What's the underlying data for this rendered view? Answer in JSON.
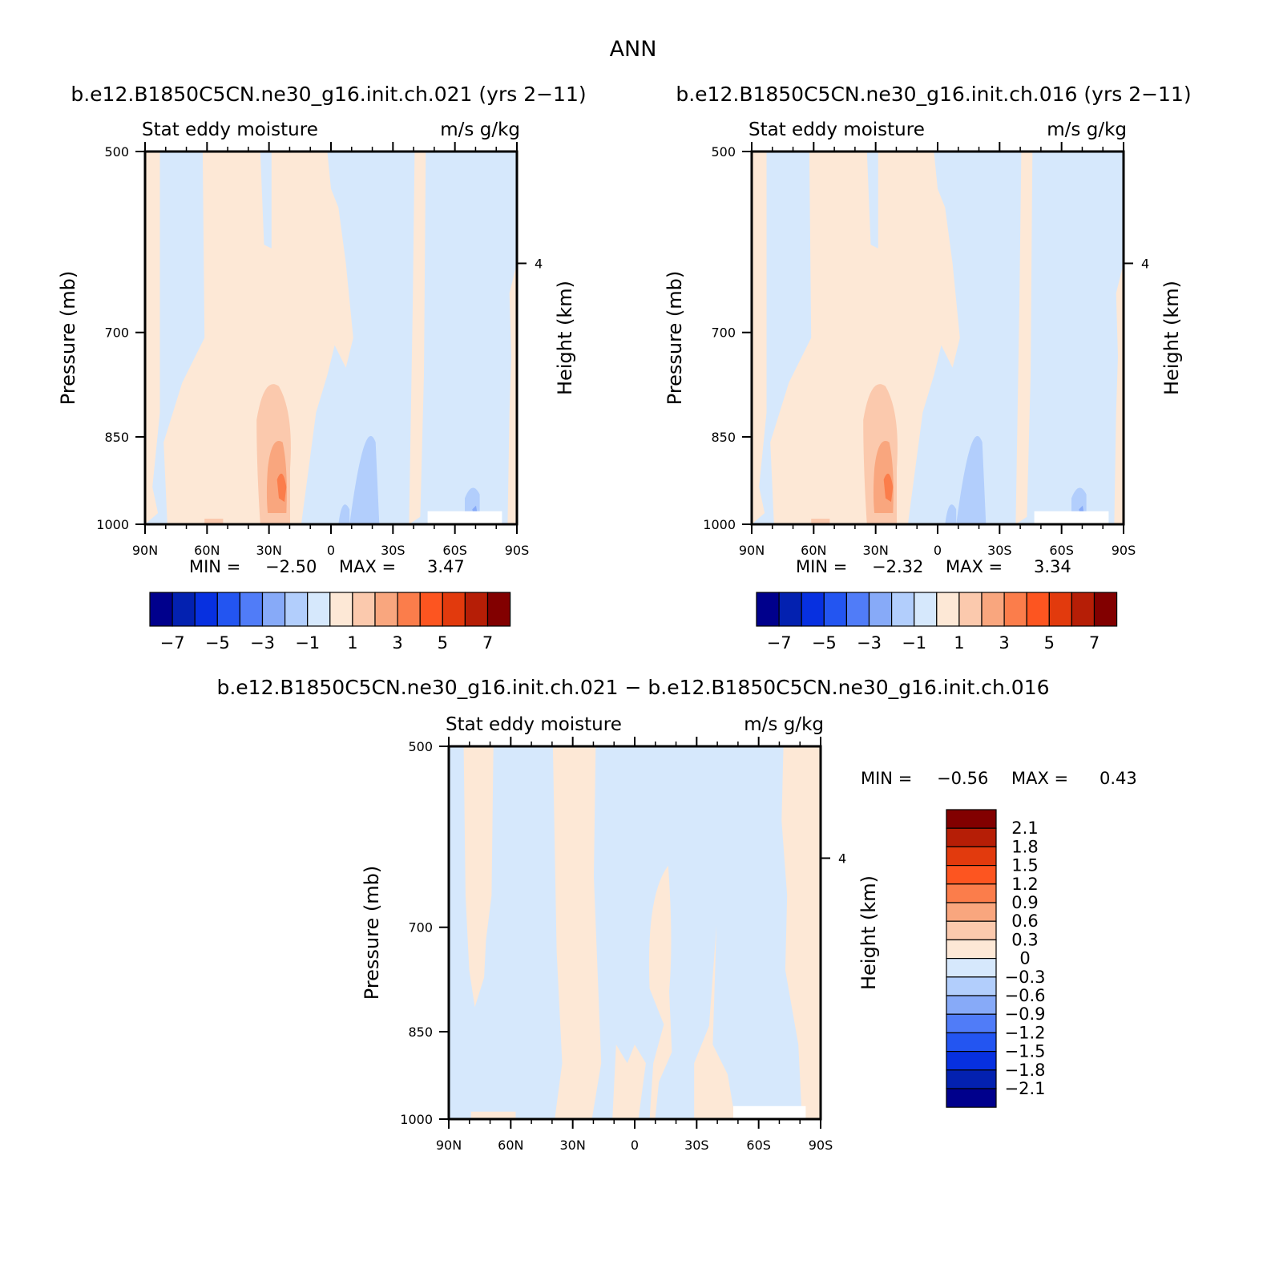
{
  "figure": {
    "title": "ANN",
    "diff_title": "b.e12.B1850C5CN.ne30_g16.init.ch.021 − b.e12.B1850C5CN.ne30_g16.init.ch.016"
  },
  "colors": {
    "pos": [
      "#fde8d6",
      "#fbc9ad",
      "#f9a67e",
      "#fb7d4b",
      "#fd5520",
      "#e23a0d",
      "#b61e06",
      "#820000"
    ],
    "neg": [
      "#d6e8fc",
      "#b2cefc",
      "#87aaf8",
      "#507cf8",
      "#2355f1",
      "#0730e0",
      "#0321b0",
      "#00008c"
    ]
  },
  "chart_data": [
    {
      "type": "contour",
      "case": "b.e12.B1850C5CN.ne30_g16.init.ch.021 (yrs 2−11)",
      "left_title": "Stat eddy moisture",
      "right_title": "m/s g/kg",
      "xlabel": "",
      "ylabel": "Pressure (mb)",
      "ylabel_right": "Height (km)",
      "x_ticks": [
        "90N",
        "60N",
        "30N",
        "0",
        "30S",
        "60S",
        "90S"
      ],
      "y_ticks": [
        "500",
        "700",
        "850",
        "1000"
      ],
      "y_right_ticks": [
        "4"
      ],
      "ylim": [
        1000,
        500
      ],
      "min_label": "MIN =",
      "min": "−2.50",
      "max_label": "MAX =",
      "max": "3.47",
      "colorbar_levels": [
        -7,
        -6,
        -5,
        -4,
        -3,
        -2,
        -1,
        0,
        1,
        2,
        3,
        4,
        5,
        6,
        7
      ],
      "colorbar_ticks": [
        "−7",
        "−5",
        "−3",
        "−1",
        "1",
        "3",
        "5",
        "7"
      ]
    },
    {
      "type": "contour",
      "case": "b.e12.B1850C5CN.ne30_g16.init.ch.016 (yrs 2−11)",
      "left_title": "Stat eddy moisture",
      "right_title": "m/s g/kg",
      "xlabel": "",
      "ylabel": "Pressure (mb)",
      "ylabel_right": "Height (km)",
      "x_ticks": [
        "90N",
        "60N",
        "30N",
        "0",
        "30S",
        "60S",
        "90S"
      ],
      "y_ticks": [
        "500",
        "700",
        "850",
        "1000"
      ],
      "y_right_ticks": [
        "4"
      ],
      "ylim": [
        1000,
        500
      ],
      "min_label": "MIN =",
      "min": "−2.32",
      "max_label": "MAX =",
      "max": "3.34",
      "colorbar_levels": [
        -7,
        -6,
        -5,
        -4,
        -3,
        -2,
        -1,
        0,
        1,
        2,
        3,
        4,
        5,
        6,
        7
      ],
      "colorbar_ticks": [
        "−7",
        "−5",
        "−3",
        "−1",
        "1",
        "3",
        "5",
        "7"
      ]
    },
    {
      "type": "contour",
      "left_title": "Stat eddy moisture",
      "right_title": "m/s g/kg",
      "xlabel": "",
      "ylabel": "Pressure (mb)",
      "ylabel_right": "Height (km)",
      "x_ticks": [
        "90N",
        "60N",
        "30N",
        "0",
        "30S",
        "60S",
        "90S"
      ],
      "y_ticks": [
        "500",
        "700",
        "850",
        "1000"
      ],
      "y_right_ticks": [
        "4"
      ],
      "ylim": [
        1000,
        500
      ],
      "min_label": "MIN =",
      "min": "−0.56",
      "max_label": "MAX =",
      "max": "0.43",
      "colorbar_levels": [
        -2.1,
        -1.8,
        -1.5,
        -1.2,
        -0.9,
        -0.6,
        -0.3,
        0,
        0.3,
        0.6,
        0.9,
        1.2,
        1.5,
        1.8,
        2.1
      ],
      "colorbar_ticks": [
        "2.1",
        "1.8",
        "1.5",
        "1.2",
        "0.9",
        "0.6",
        "0.3",
        "0",
        "−0.3",
        "−0.6",
        "−0.9",
        "−1.2",
        "−1.5",
        "−1.8",
        "−2.1"
      ]
    }
  ]
}
